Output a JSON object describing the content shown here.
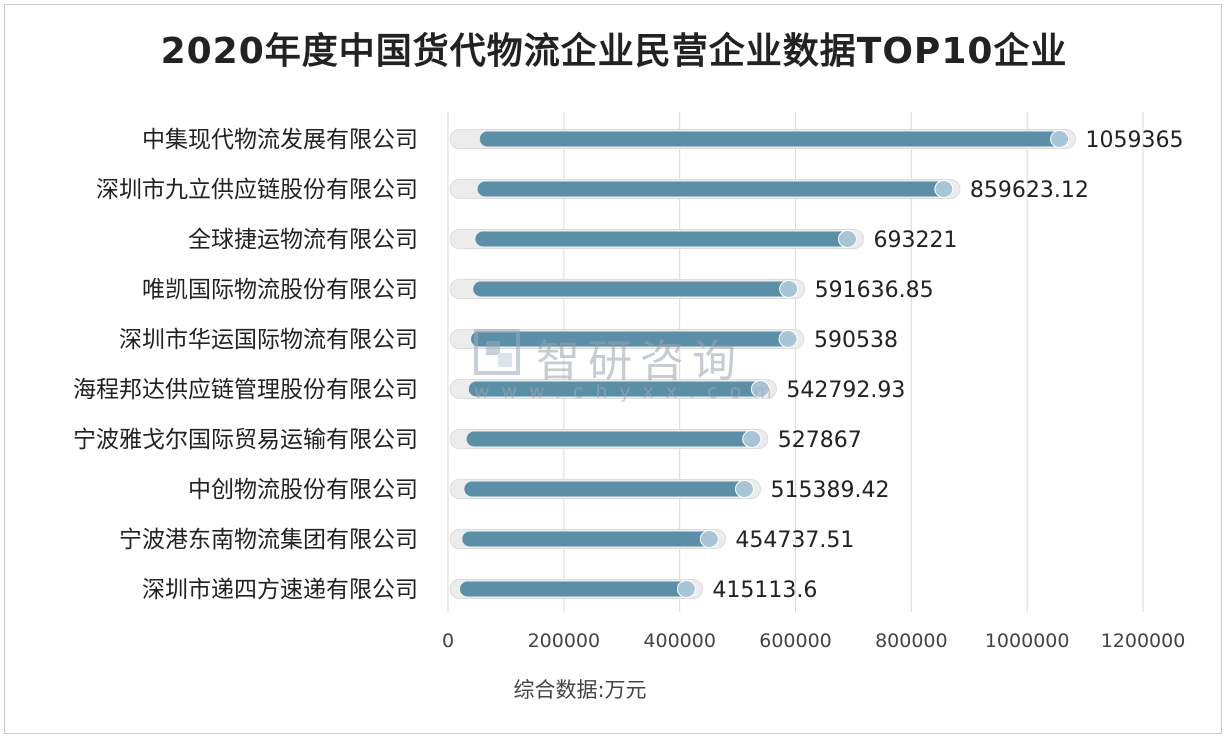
{
  "title": "2020年度中国货代物流企业民营企业数据TOP10企业",
  "watermark": {
    "name": "智研咨询",
    "url": "www.chyxx.com"
  },
  "colors": {
    "bar": "#5b8fa8",
    "bar_end": "#a7c5d6",
    "track": "#ececec",
    "grid": "#d9d9d9",
    "text": "#222222"
  },
  "chart_data": {
    "type": "bar",
    "orientation": "horizontal",
    "title": "2020年度中国货代物流企业民营企业数据TOP10企业",
    "xlabel": "综合数据:万元",
    "ylabel": "",
    "xlim": [
      0,
      1200000
    ],
    "x_ticks": [
      "0",
      "200000",
      "400000",
      "600000",
      "800000",
      "1000000",
      "1200000"
    ],
    "x_tick_values": [
      0,
      200000,
      400000,
      600000,
      800000,
      1000000,
      1200000
    ],
    "grid": "vertical",
    "legend": "none",
    "categories": [
      "中集现代物流发展有限公司",
      "深圳市九立供应链股份有限公司",
      "全球捷运物流有限公司",
      "唯凯国际物流股份有限公司",
      "深圳市华运国际物流有限公司",
      "海程邦达供应链管理股份有限公司",
      "宁波雅戈尔国际贸易运输有限公司",
      "中创物流股份有限公司",
      "宁波港东南物流集团有限公司",
      "深圳市递四方速递有限公司"
    ],
    "values": [
      1059365,
      859623.12,
      693221,
      591636.85,
      590538,
      542792.93,
      527867,
      515389.42,
      454737.51,
      415113.6
    ],
    "labels": [
      "1059365",
      "859623.12",
      "693221",
      "591636.85",
      "590538",
      "542792.93",
      "527867",
      "515389.42",
      "454737.51",
      "415113.6"
    ]
  }
}
